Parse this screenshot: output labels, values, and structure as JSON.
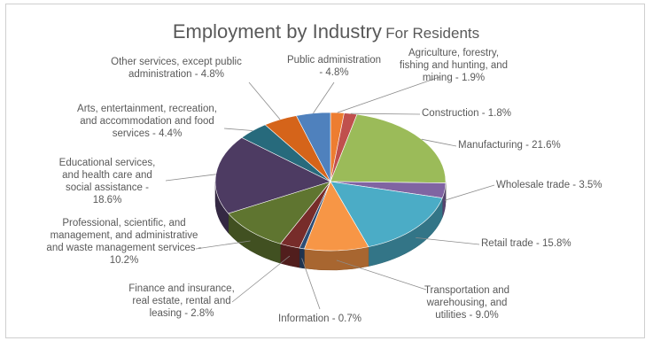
{
  "chart_data": {
    "type": "pie",
    "title": "Employment by Industry",
    "subtitle": "For Residents",
    "slices": [
      {
        "label": "Agriculture, forestry, fishing and hunting, and mining - 1.9%",
        "value": 1.9,
        "color": "#ed7d31"
      },
      {
        "label": "Construction - 1.8%",
        "value": 1.8,
        "color": "#c0504d"
      },
      {
        "label": "Manufacturing - 21.6%",
        "value": 21.6,
        "color": "#9bbb59"
      },
      {
        "label": "Wholesale trade - 3.5%",
        "value": 3.5,
        "color": "#8064a2"
      },
      {
        "label": "Retail trade - 15.8%",
        "value": 15.8,
        "color": "#4bacc6"
      },
      {
        "label": "Transportation and warehousing, and utilities - 9.0%",
        "value": 9.0,
        "color": "#f79646"
      },
      {
        "label": "Information - 0.7%",
        "value": 0.7,
        "color": "#2c4d75"
      },
      {
        "label": "Finance and insurance, real estate, rental and leasing - 2.8%",
        "value": 2.8,
        "color": "#772c2a"
      },
      {
        "label": "Professional, scientific, and management, and administrative and waste management services - 10.2%",
        "value": 10.2,
        "color": "#5f7530"
      },
      {
        "label": "Educational services, and health care and social assistance - 18.6%",
        "value": 18.6,
        "color": "#4d3b62"
      },
      {
        "label": "Arts, entertainment, recreation, and accommodation and food services - 4.4%",
        "value": 4.4,
        "color": "#276a7c"
      },
      {
        "label": "Other services, except public administration - 4.8%",
        "value": 4.8,
        "color": "#d5641a"
      },
      {
        "label": "Public administration - 4.8%",
        "value": 4.8,
        "color": "#4f81bd"
      }
    ],
    "legend": "none"
  }
}
